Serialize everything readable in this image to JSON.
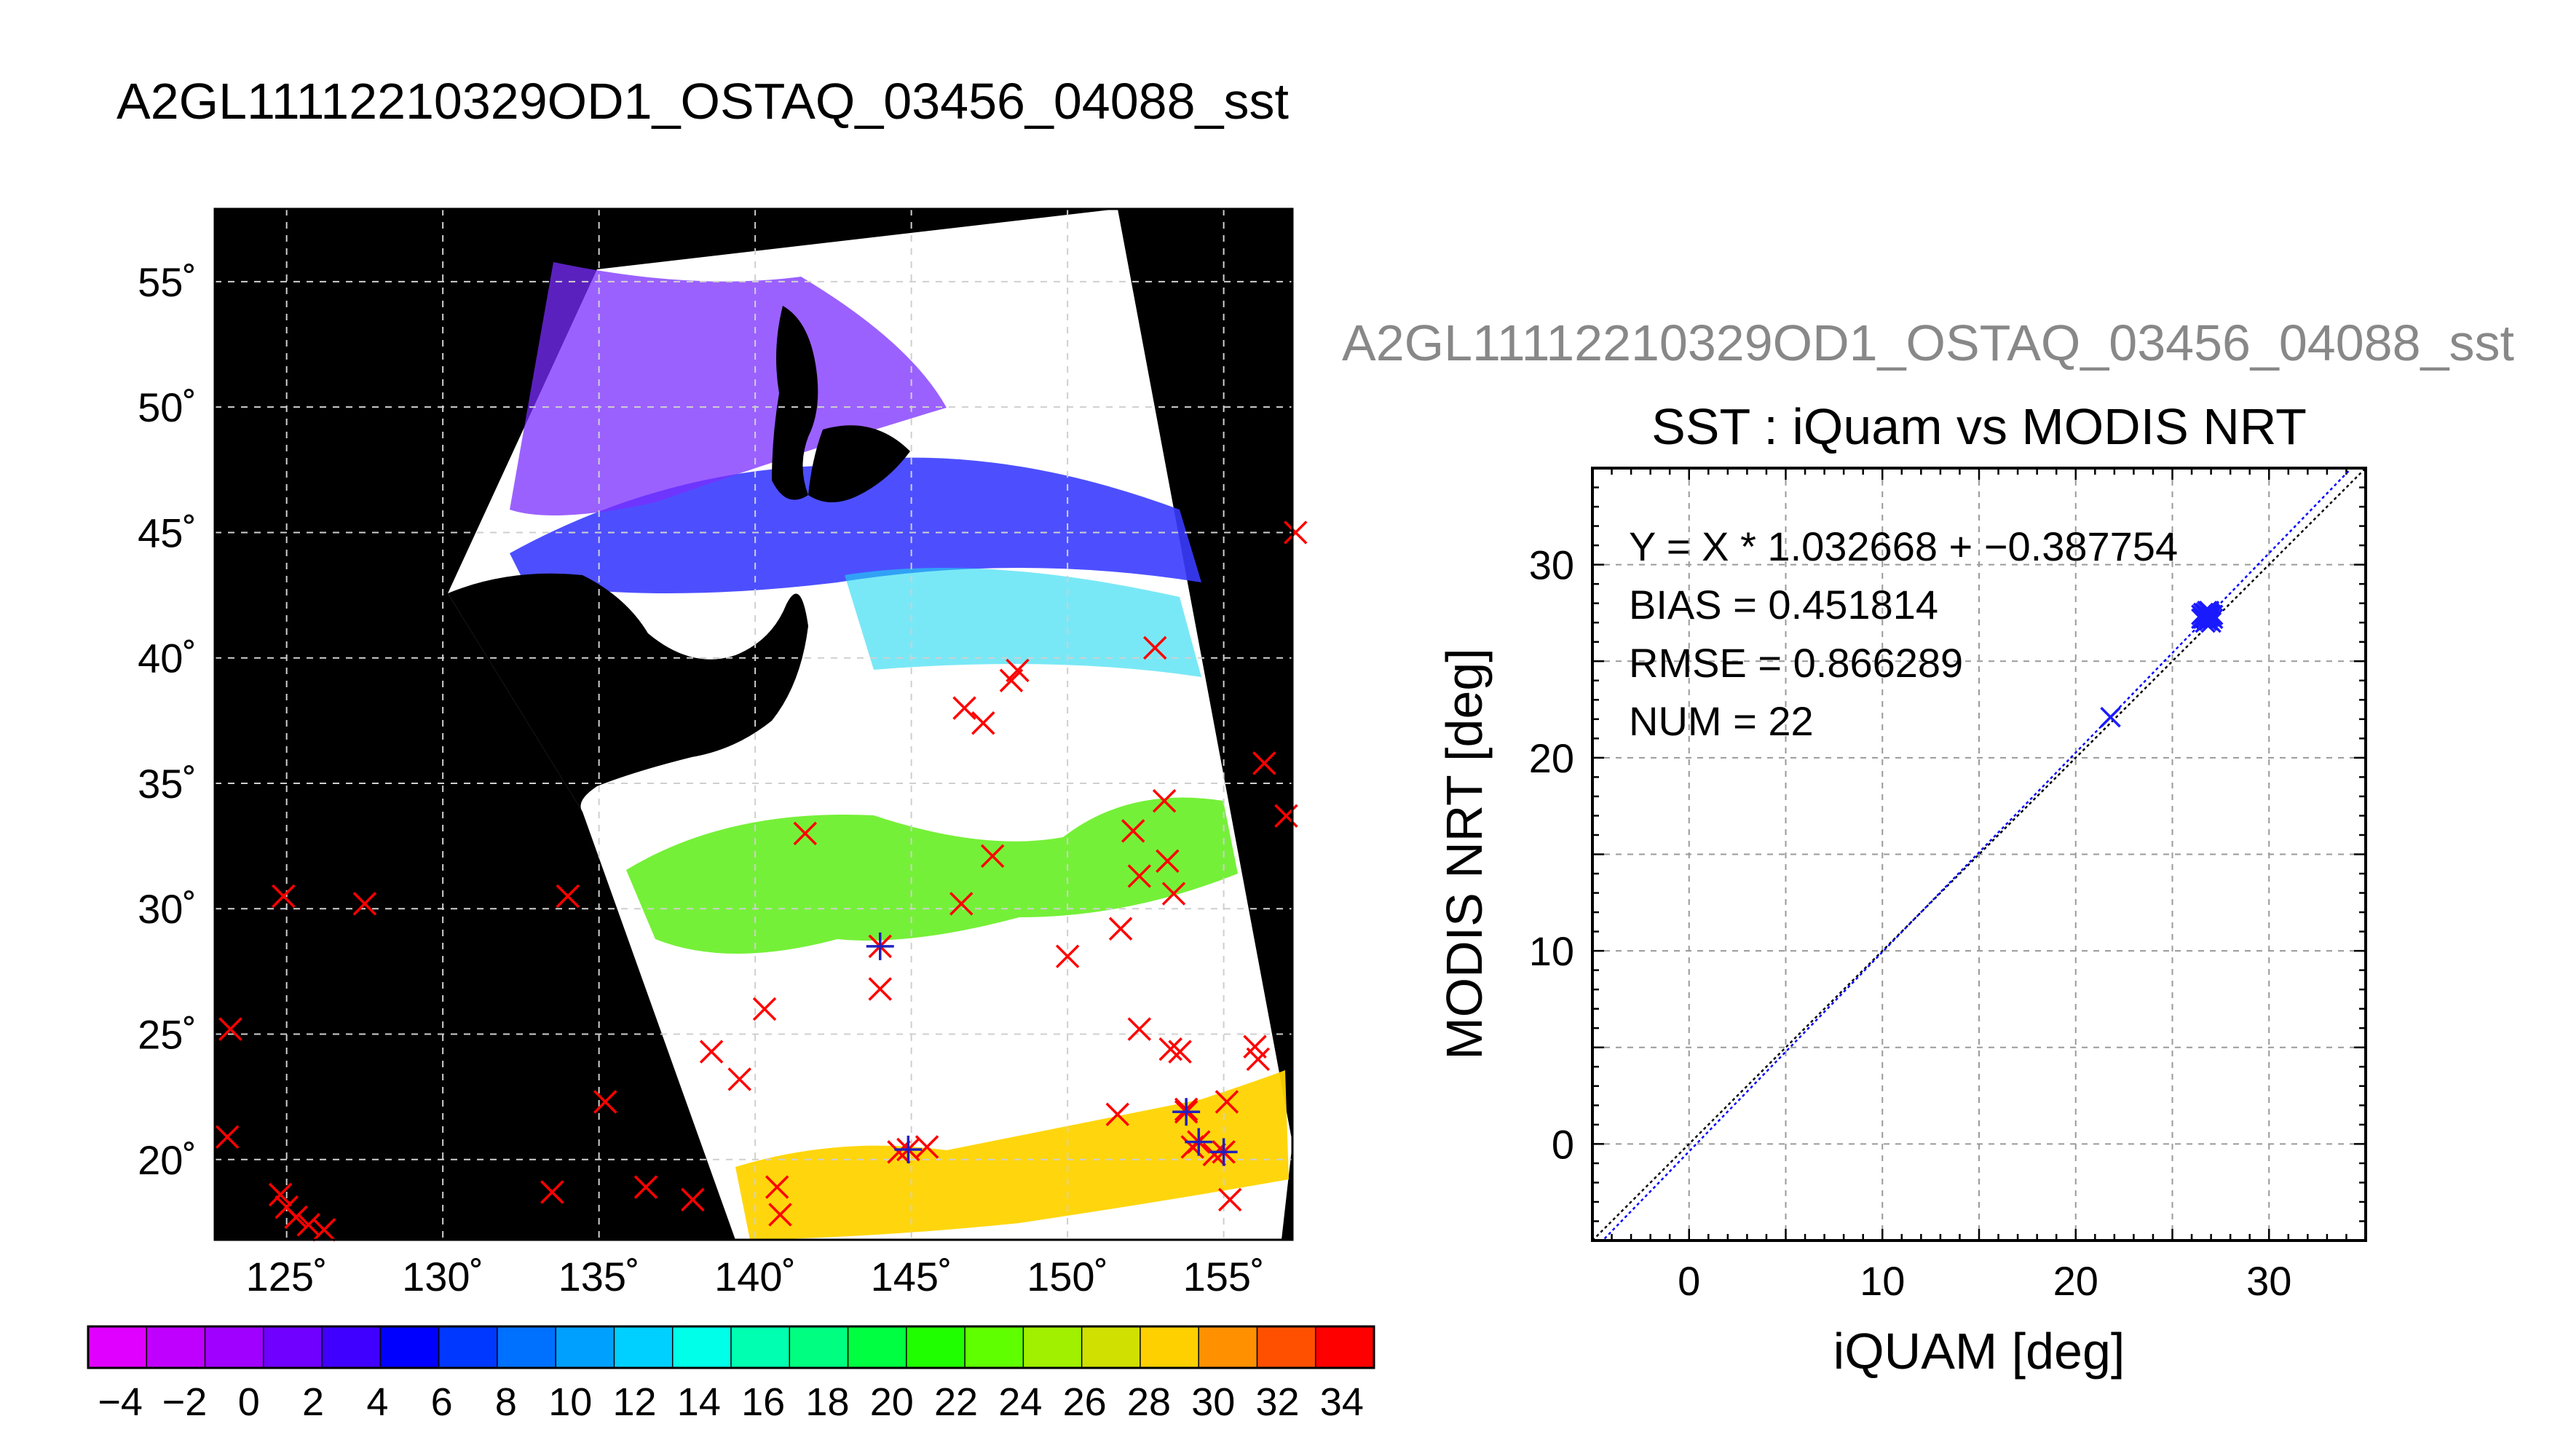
{
  "page_title": "A2GL11112210329OD1_OSTAQ_03456_04088_sst",
  "map": {
    "lat_labels": [
      "55˚",
      "50˚",
      "45˚",
      "40˚",
      "35˚",
      "30˚",
      "25˚",
      "20˚"
    ],
    "lon_labels": [
      "125˚",
      "130˚",
      "135˚",
      "140˚",
      "145˚",
      "150˚",
      "155˚"
    ],
    "lat_values": [
      55,
      50,
      45,
      40,
      35,
      30,
      25,
      20
    ],
    "lon_values": [
      125,
      130,
      135,
      140,
      145,
      150,
      155
    ],
    "lon_range": [
      122.7,
      157.2
    ],
    "lat_range": [
      16.8,
      57.9
    ]
  },
  "colorbar": {
    "tick_labels": [
      "−4",
      "−2",
      "0",
      "2",
      "4",
      "6",
      "8",
      "10",
      "12",
      "14",
      "16",
      "18",
      "20",
      "22",
      "24",
      "26",
      "28",
      "30",
      "32",
      "34"
    ],
    "range": [
      -5,
      35
    ],
    "colors": [
      "#e000ff",
      "#c000ff",
      "#a000ff",
      "#7000ff",
      "#4000ff",
      "#0000ff",
      "#0038ff",
      "#0070ff",
      "#00a0ff",
      "#00d0ff",
      "#00ffe8",
      "#00ffb0",
      "#00ff80",
      "#00ff40",
      "#20ff00",
      "#60ff00",
      "#a0f000",
      "#d0e000",
      "#ffd000",
      "#ff9000",
      "#ff5000",
      "#ff0000"
    ]
  },
  "chart_data": {
    "type": "scatter",
    "subtitle": "A2GL11112210329OD1_OSTAQ_03456_04088_sst",
    "title": "SST : iQuam vs MODIS NRT",
    "xlabel": "iQUAM [deg]",
    "ylabel": "MODIS NRT [deg]",
    "xlim": [
      -5,
      35
    ],
    "ylim": [
      -5,
      35
    ],
    "x_ticks": [
      0,
      10,
      20,
      30
    ],
    "y_ticks": [
      0,
      10,
      20,
      30
    ],
    "grid": true,
    "stats": {
      "fit_label": "Y = X * 1.032668 + −0.387754",
      "bias_label": "BIAS = 0.451814",
      "rmse_label": "RMSE = 0.866289",
      "num_label": "NUM = 22"
    },
    "fit": {
      "slope": 1.032668,
      "intercept": -0.387754
    },
    "points": [
      {
        "x": 21.8,
        "y": 22.1
      },
      {
        "x": 26.5,
        "y": 27.4
      },
      {
        "x": 26.6,
        "y": 27.2
      },
      {
        "x": 26.7,
        "y": 27.5
      },
      {
        "x": 26.8,
        "y": 27.3
      },
      {
        "x": 26.9,
        "y": 27.1
      },
      {
        "x": 27.0,
        "y": 27.4
      },
      {
        "x": 26.7,
        "y": 27.0
      },
      {
        "x": 26.8,
        "y": 27.6
      },
      {
        "x": 26.9,
        "y": 27.3
      },
      {
        "x": 27.1,
        "y": 27.2
      },
      {
        "x": 26.6,
        "y": 27.5
      },
      {
        "x": 26.8,
        "y": 27.1
      },
      {
        "x": 27.0,
        "y": 27.3
      },
      {
        "x": 26.7,
        "y": 27.4
      },
      {
        "x": 26.9,
        "y": 27.6
      },
      {
        "x": 26.5,
        "y": 27.2
      },
      {
        "x": 27.0,
        "y": 27.0
      },
      {
        "x": 26.8,
        "y": 27.4
      },
      {
        "x": 26.6,
        "y": 27.3
      },
      {
        "x": 26.9,
        "y": 27.5
      },
      {
        "x": 27.1,
        "y": 27.4
      }
    ]
  },
  "map_markers": {
    "red_x": [
      [
        123.2,
        25.2
      ],
      [
        123.1,
        20.9
      ],
      [
        124.8,
        18.6
      ],
      [
        124.9,
        30.5
      ],
      [
        125.0,
        18.1
      ],
      [
        125.3,
        17.7
      ],
      [
        125.7,
        17.4
      ],
      [
        126.2,
        17.2
      ],
      [
        127.5,
        30.2
      ],
      [
        133.5,
        18.7
      ],
      [
        134.0,
        30.5
      ],
      [
        135.2,
        22.3
      ],
      [
        136.5,
        18.9
      ],
      [
        138.0,
        18.4
      ],
      [
        138.6,
        24.3
      ],
      [
        139.5,
        23.2
      ],
      [
        140.3,
        26.0
      ],
      [
        140.7,
        18.9
      ],
      [
        140.8,
        17.8
      ],
      [
        141.6,
        33.0
      ],
      [
        144.0,
        26.8
      ],
      [
        144.6,
        20.3
      ],
      [
        145.5,
        20.5
      ],
      [
        146.6,
        30.2
      ],
      [
        146.7,
        38.0
      ],
      [
        147.3,
        37.4
      ],
      [
        147.6,
        32.1
      ],
      [
        148.2,
        39.1
      ],
      [
        148.4,
        39.5
      ],
      [
        150.0,
        28.1
      ],
      [
        151.6,
        21.8
      ],
      [
        151.7,
        29.2
      ],
      [
        152.1,
        33.1
      ],
      [
        152.3,
        31.3
      ],
      [
        152.3,
        25.2
      ],
      [
        152.8,
        40.4
      ],
      [
        153.1,
        34.3
      ],
      [
        153.2,
        31.9
      ],
      [
        153.4,
        30.6
      ],
      [
        153.3,
        24.4
      ],
      [
        153.6,
        24.3
      ],
      [
        153.8,
        22.0
      ],
      [
        154.0,
        20.5
      ],
      [
        154.7,
        20.2
      ],
      [
        155.1,
        22.3
      ],
      [
        155.2,
        18.4
      ],
      [
        156.0,
        24.5
      ],
      [
        156.1,
        24.0
      ],
      [
        156.3,
        35.8
      ],
      [
        157.0,
        33.7
      ],
      [
        157.3,
        45.0
      ]
    ],
    "blue_star": [
      [
        144.0,
        28.5
      ],
      [
        144.9,
        20.4
      ],
      [
        153.8,
        21.9
      ],
      [
        154.2,
        20.7
      ],
      [
        155.0,
        20.3
      ]
    ]
  }
}
